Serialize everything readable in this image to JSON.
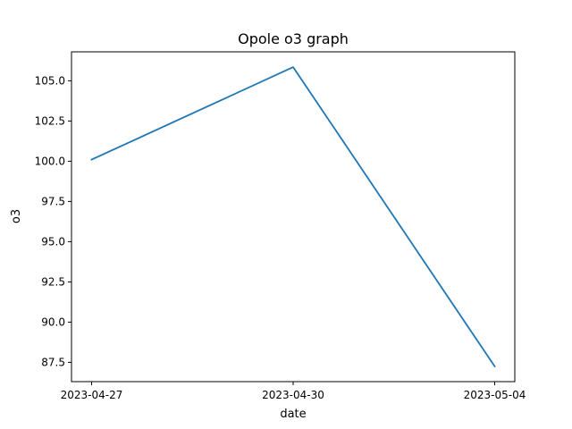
{
  "chart_data": {
    "type": "line",
    "title": "Opole o3 graph",
    "xlabel": "date",
    "ylabel": "o3",
    "categories": [
      "2023-04-27",
      "2023-04-30",
      "2023-05-04"
    ],
    "series": [
      {
        "values": [
          100.1,
          105.85,
          87.25
        ],
        "color": "#1f77b4"
      }
    ],
    "yticks": [
      "87.5",
      "90.0",
      "92.5",
      "95.0",
      "97.5",
      "100.0",
      "102.5",
      "105.0"
    ],
    "ylim": [
      86.3,
      106.8
    ],
    "grid": false,
    "legend": "none"
  }
}
